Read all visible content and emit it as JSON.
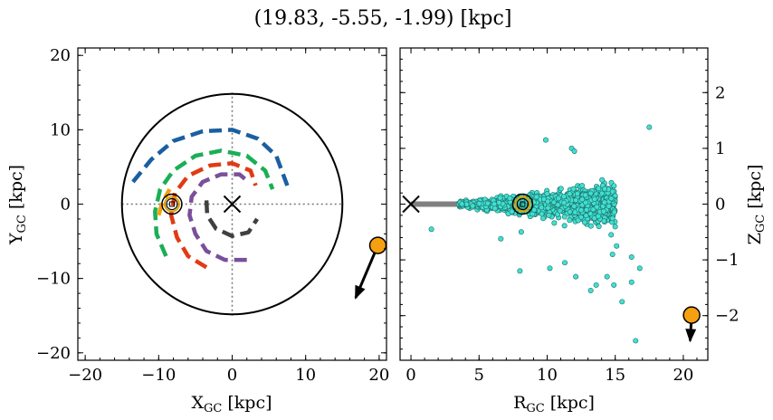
{
  "title": "(19.83, -5.55, -1.99) [kpc]",
  "colors": {
    "stars_fill": "#40e0d0",
    "stars_edge": "#1f6f6a",
    "object": "#f5a011",
    "disk_line": "#808080",
    "arm_blue": "#1a5fa0",
    "arm_green": "#1aaf55",
    "arm_red": "#e03b14",
    "arm_purple": "#7a4f9a",
    "arm_dark": "#404040",
    "arm_orange": "#f5a011"
  },
  "chart_data": [
    {
      "type": "scatter",
      "panel": "xy",
      "xlabel": "X",
      "xlabel_sub": "GC",
      "xlabel_unit": " [kpc]",
      "ylabel": "Y",
      "ylabel_sub": "GC",
      "ylabel_unit": " [kpc]",
      "xlim": [
        -21,
        21
      ],
      "ylim": [
        -21,
        21
      ],
      "xticks": [
        -20,
        -10,
        0,
        10,
        20
      ],
      "yticks": [
        -20,
        -10,
        0,
        10,
        20
      ],
      "xtick_labels": [
        "−20",
        "−10",
        "0",
        "10",
        "20"
      ],
      "ytick_labels": [
        "−20",
        "−10",
        "0",
        "10",
        "20"
      ],
      "circle_radius": 15,
      "galactic_center": [
        0,
        0
      ],
      "sun": [
        -8.2,
        0
      ],
      "object": [
        19.83,
        -5.55
      ],
      "object_arrow_end": [
        16.8,
        -12.6
      ],
      "spiral_arms": [
        {
          "color": "arm_blue",
          "points": [
            [
              -13.5,
              3
            ],
            [
              -11,
              6
            ],
            [
              -8,
              8.5
            ],
            [
              -4,
              9.8
            ],
            [
              0,
              10
            ],
            [
              3.5,
              8.8
            ],
            [
              6,
              6.5
            ],
            [
              7.5,
              2.5
            ]
          ]
        },
        {
          "color": "arm_green",
          "points": [
            [
              -9,
              -7
            ],
            [
              -10.3,
              -4
            ],
            [
              -10.5,
              -1
            ],
            [
              -9.8,
              2
            ],
            [
              -8,
              4.5
            ],
            [
              -5,
              6.5
            ],
            [
              -1.5,
              7.2
            ],
            [
              2,
              6.5
            ],
            [
              4.5,
              4.5
            ],
            [
              5.5,
              2
            ]
          ]
        },
        {
          "color": "arm_red",
          "points": [
            [
              -3.5,
              -8.5
            ],
            [
              -6,
              -7
            ],
            [
              -7.5,
              -4.5
            ],
            [
              -8.3,
              -1.5
            ],
            [
              -7.8,
              1.5
            ],
            [
              -6,
              3.8
            ],
            [
              -3,
              5.2
            ],
            [
              0,
              5.5
            ],
            [
              2.5,
              4.5
            ],
            [
              3.2,
              2.5
            ]
          ]
        },
        {
          "color": "arm_purple",
          "points": [
            [
              2,
              -7.5
            ],
            [
              -1,
              -7.5
            ],
            [
              -3.5,
              -6.3
            ],
            [
              -5,
              -4
            ],
            [
              -5.8,
              -1.5
            ],
            [
              -5.5,
              1
            ],
            [
              -4,
              3
            ],
            [
              -1.5,
              4
            ],
            [
              1,
              4
            ],
            [
              2.2,
              3
            ]
          ]
        },
        {
          "color": "arm_dark",
          "points": [
            [
              -3.5,
              0.5
            ],
            [
              -3.4,
              -1.5
            ],
            [
              -2.2,
              -3.3
            ],
            [
              0,
              -4.3
            ],
            [
              2.2,
              -3.8
            ],
            [
              3.4,
              -2
            ]
          ]
        },
        {
          "color": "arm_orange",
          "points": [
            [
              -10,
              -1.5
            ],
            [
              -9.5,
              0.3
            ],
            [
              -8.5,
              2
            ]
          ]
        }
      ]
    },
    {
      "type": "scatter",
      "panel": "rz",
      "xlabel": "R",
      "xlabel_sub": "GC",
      "xlabel_unit": " [kpc]",
      "ylabel": "Z",
      "ylabel_sub": "GC",
      "ylabel_unit": " [kpc]",
      "xlim": [
        -0.8,
        21.8
      ],
      "ylim": [
        -2.8,
        2.8
      ],
      "xticks": [
        0,
        5,
        10,
        15,
        20
      ],
      "yticks": [
        -2,
        -1,
        0,
        1,
        2
      ],
      "xtick_labels": [
        "0",
        "5",
        "10",
        "15",
        "20"
      ],
      "ytick_labels": [
        "−2",
        "−1",
        "0",
        "1",
        "2"
      ],
      "disk_line": [
        [
          0,
          0
        ],
        [
          15,
          0
        ]
      ],
      "galactic_center": [
        0,
        0
      ],
      "sun": [
        8.2,
        0
      ],
      "object": [
        20.61,
        -1.99
      ],
      "object_arrow_end": [
        20.5,
        -2.45
      ],
      "outlier_stars": [
        [
          17.5,
          1.38
        ],
        [
          9.9,
          1.15
        ],
        [
          11.8,
          1.0
        ],
        [
          12.0,
          0.95
        ],
        [
          16.8,
          -1.15
        ],
        [
          13.2,
          -1.55
        ],
        [
          15.5,
          -1.75
        ],
        [
          13.6,
          -1.45
        ],
        [
          14.9,
          -1.45
        ],
        [
          14.4,
          -1.3
        ],
        [
          16.2,
          -1.4
        ],
        [
          10.2,
          -1.15
        ],
        [
          11.3,
          -1.05
        ],
        [
          12.1,
          -1.3
        ],
        [
          8.0,
          -1.2
        ],
        [
          16.2,
          -0.95
        ],
        [
          14.8,
          -0.9
        ],
        [
          15.1,
          -0.75
        ],
        [
          1.5,
          -0.45
        ],
        [
          6.6,
          -0.62
        ],
        [
          13.8,
          -0.4
        ],
        [
          14.7,
          -0.55
        ],
        [
          8.1,
          -0.5
        ],
        [
          16.5,
          -2.45
        ]
      ],
      "star_cloud": {
        "r_range": [
          3.5,
          15
        ],
        "z_spread": 0.55,
        "count": 1400
      }
    }
  ]
}
